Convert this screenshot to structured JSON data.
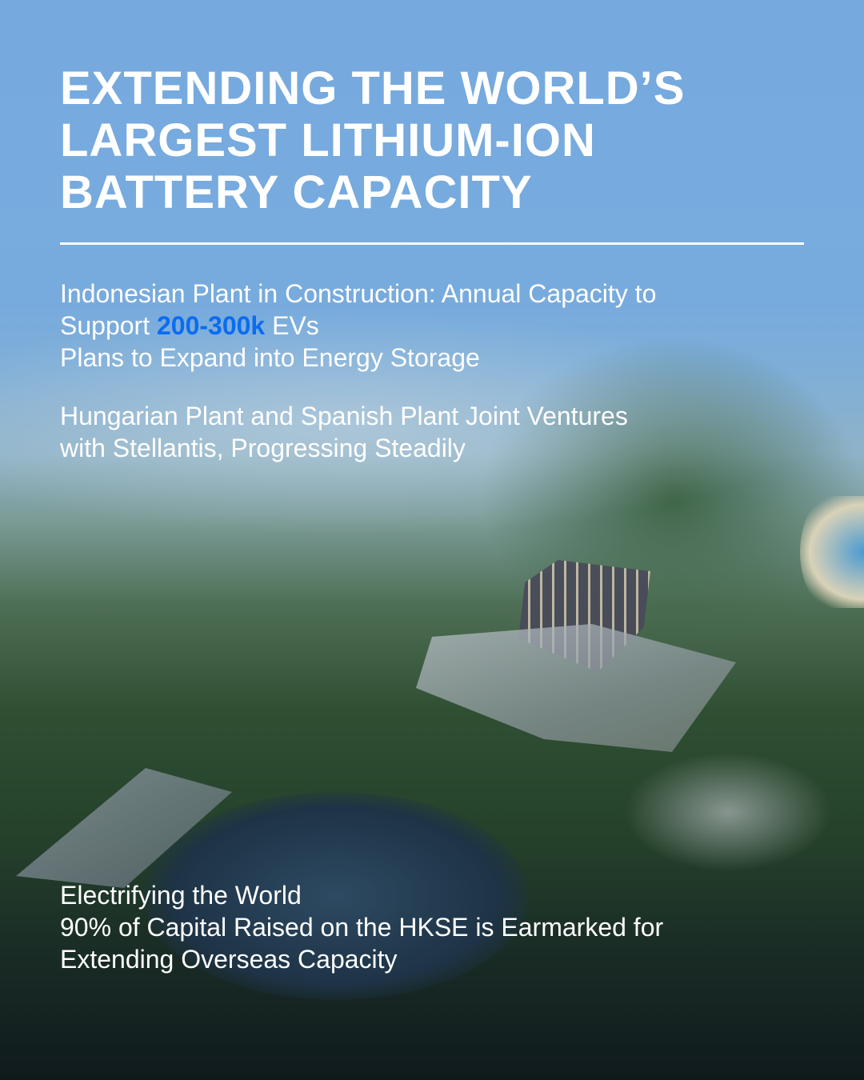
{
  "title_lines": [
    "EXTENDING THE WORLD’S",
    "LARGEST LITHIUM-ION",
    "BATTERY CAPACITY"
  ],
  "paragraph1": {
    "line1": "Indonesian Plant in Construction: Annual Capacity to",
    "line2_prefix": "Support ",
    "line2_highlight": "200-300k",
    "line2_suffix": " EVs",
    "line3": "Plans to Expand into Energy Storage"
  },
  "paragraph2": {
    "line1": "Hungarian Plant and Spanish Plant Joint Ventures",
    "line2": "with Stellantis, Progressing Steadily"
  },
  "paragraph3": {
    "line1": "Electrifying the World",
    "line2": "90% of Capital Raised on the HKSE is Earmarked for",
    "line3": "Extending Overseas Capacity"
  },
  "colors": {
    "sky": "#76aadf",
    "highlight": "#0a6cf0",
    "forest": "#2f4f33"
  }
}
